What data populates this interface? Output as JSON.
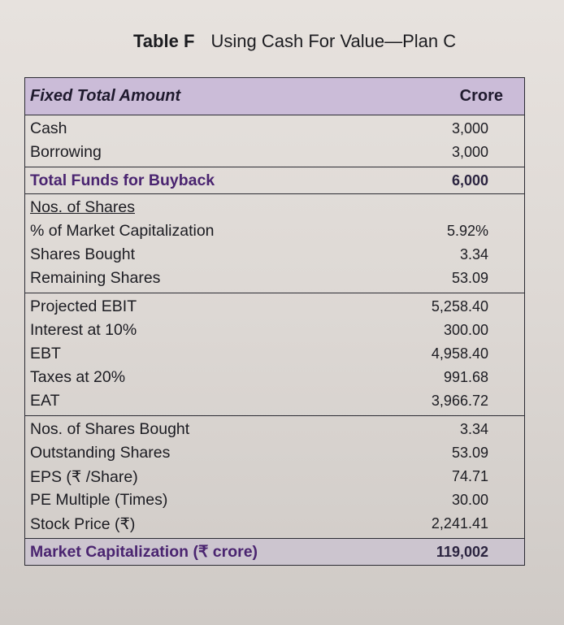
{
  "caption": {
    "label": "Table F",
    "title": "Using Cash For Value—Plan C"
  },
  "header": {
    "left": "Fixed Total Amount",
    "right": "Crore"
  },
  "sections": [
    {
      "rows": [
        {
          "label": "Cash",
          "value": "3,000"
        },
        {
          "label": "Borrowing",
          "value": "3,000"
        }
      ]
    },
    {
      "rows": [
        {
          "label": "Total Funds for Buyback",
          "value": "6,000",
          "style": "bold"
        }
      ]
    },
    {
      "rows": [
        {
          "label": "Nos. of Shares",
          "value": "",
          "style": "underline"
        },
        {
          "label": "% of Market Capitalization",
          "value": "5.92%"
        },
        {
          "label": "Shares Bought",
          "value": "3.34"
        },
        {
          "label": "Remaining Shares",
          "value": "53.09"
        }
      ]
    },
    {
      "rows": [
        {
          "label": "Projected EBIT",
          "value": "5,258.40"
        },
        {
          "label": "Interest at 10%",
          "value": "300.00"
        },
        {
          "label": "EBT",
          "value": "4,958.40"
        },
        {
          "label": "Taxes at 20%",
          "value": "991.68"
        },
        {
          "label": "EAT",
          "value": "3,966.72"
        }
      ]
    },
    {
      "rows": [
        {
          "label": "Nos. of Shares Bought",
          "value": "3.34"
        },
        {
          "label": "Outstanding Shares",
          "value": "53.09"
        },
        {
          "label": "EPS (₹ /Share)",
          "value": "74.71"
        },
        {
          "label": "PE Multiple (Times)",
          "value": "30.00"
        },
        {
          "label": "Stock Price (₹)",
          "value": "2,241.41"
        }
      ]
    },
    {
      "rows": [
        {
          "label": "Market Capitalization (₹ crore)",
          "value": "119,002",
          "style": "bold"
        }
      ]
    }
  ]
}
